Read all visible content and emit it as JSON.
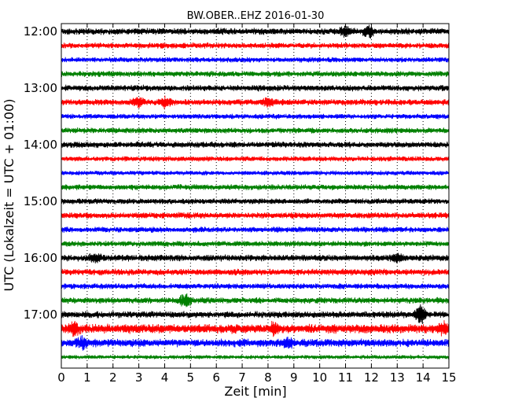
{
  "chart_data": {
    "type": "line",
    "title": "BW.OBER..EHZ 2016-01-30",
    "xlabel": "Zeit  [min]",
    "ylabel": "UTC (Lokalzeit = UTC + 01:00)",
    "xlim": [
      0,
      15
    ],
    "x_ticks": [
      "0",
      "1",
      "2",
      "3",
      "4",
      "5",
      "6",
      "7",
      "8",
      "9",
      "10",
      "11",
      "12",
      "13",
      "14",
      "15"
    ],
    "y_ticks": [
      "12:00",
      "13:00",
      "14:00",
      "15:00",
      "16:00",
      "17:00"
    ],
    "grid": {
      "x": true,
      "style": "dotted"
    },
    "trace_interval_min": 15,
    "series": [
      {
        "time": "12:00",
        "color": "#000000",
        "amplitude": 0.28
      },
      {
        "time": "12:15",
        "color": "#ff0000",
        "amplitude": 0.24
      },
      {
        "time": "12:30",
        "color": "#0000ff",
        "amplitude": 0.22
      },
      {
        "time": "12:45",
        "color": "#008000",
        "amplitude": 0.24
      },
      {
        "time": "13:00",
        "color": "#000000",
        "amplitude": 0.26
      },
      {
        "time": "13:15",
        "color": "#ff0000",
        "amplitude": 0.26
      },
      {
        "time": "13:30",
        "color": "#0000ff",
        "amplitude": 0.22
      },
      {
        "time": "13:45",
        "color": "#008000",
        "amplitude": 0.24
      },
      {
        "time": "14:00",
        "color": "#000000",
        "amplitude": 0.26
      },
      {
        "time": "14:15",
        "color": "#ff0000",
        "amplitude": 0.22
      },
      {
        "time": "14:30",
        "color": "#0000ff",
        "amplitude": 0.2
      },
      {
        "time": "14:45",
        "color": "#008000",
        "amplitude": 0.24
      },
      {
        "time": "15:00",
        "color": "#000000",
        "amplitude": 0.24
      },
      {
        "time": "15:15",
        "color": "#ff0000",
        "amplitude": 0.26
      },
      {
        "time": "15:30",
        "color": "#0000ff",
        "amplitude": 0.24
      },
      {
        "time": "15:45",
        "color": "#008000",
        "amplitude": 0.24
      },
      {
        "time": "16:00",
        "color": "#000000",
        "amplitude": 0.28
      },
      {
        "time": "16:15",
        "color": "#ff0000",
        "amplitude": 0.28
      },
      {
        "time": "16:30",
        "color": "#0000ff",
        "amplitude": 0.24
      },
      {
        "time": "16:45",
        "color": "#008000",
        "amplitude": 0.26
      },
      {
        "time": "17:00",
        "color": "#000000",
        "amplitude": 0.28
      },
      {
        "time": "17:15",
        "color": "#ff0000",
        "amplitude": 0.4
      },
      {
        "time": "17:30",
        "color": "#0000ff",
        "amplitude": 0.34
      },
      {
        "time": "17:45",
        "color": "#008000",
        "amplitude": 0.18
      }
    ],
    "events": [
      {
        "time": "12:00",
        "x": 11.0,
        "strength": 0.35
      },
      {
        "time": "12:00",
        "x": 11.9,
        "strength": 0.45
      },
      {
        "time": "13:15",
        "x": 3.0,
        "strength": 0.35
      },
      {
        "time": "13:15",
        "x": 4.0,
        "strength": 0.35
      },
      {
        "time": "13:15",
        "x": 8.0,
        "strength": 0.3
      },
      {
        "time": "16:00",
        "x": 1.3,
        "strength": 0.35
      },
      {
        "time": "16:00",
        "x": 13.0,
        "strength": 0.35
      },
      {
        "time": "16:45",
        "x": 4.8,
        "strength": 0.55
      },
      {
        "time": "17:00",
        "x": 13.9,
        "strength": 0.7
      },
      {
        "time": "17:15",
        "x": 0.5,
        "strength": 0.4
      },
      {
        "time": "17:15",
        "x": 8.2,
        "strength": 0.35
      },
      {
        "time": "17:15",
        "x": 14.8,
        "strength": 0.4
      },
      {
        "time": "17:30",
        "x": 0.8,
        "strength": 0.45
      },
      {
        "time": "17:30",
        "x": 8.8,
        "strength": 0.35
      }
    ]
  }
}
